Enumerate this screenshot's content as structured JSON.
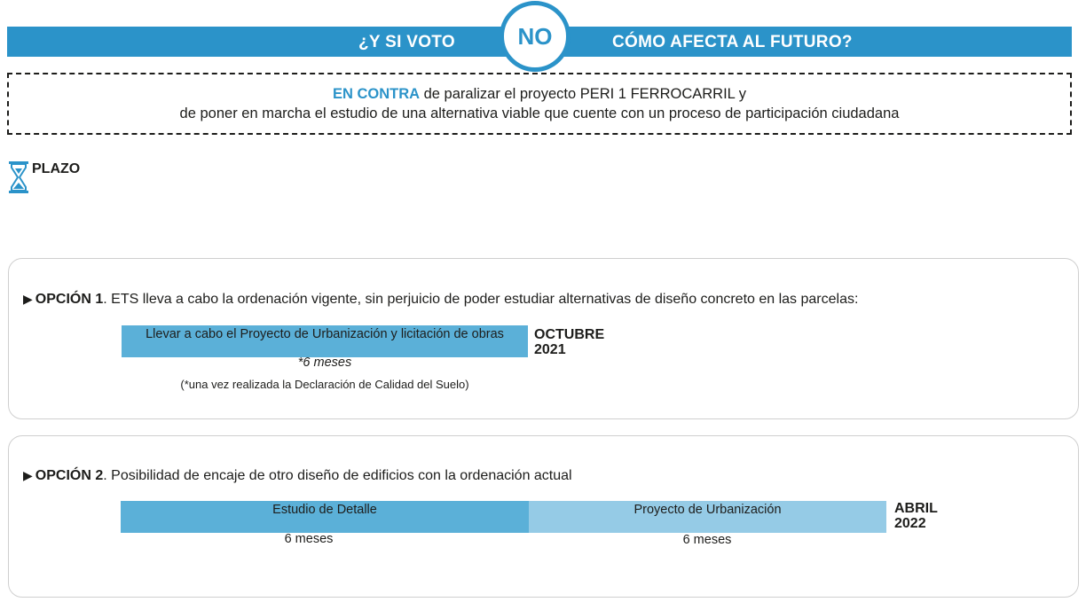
{
  "header": {
    "left_text": "¿Y SI VOTO",
    "circle_text": "NO",
    "right_text": "CÓMO AFECTA AL FUTURO?",
    "accent_color": "#2b93c9"
  },
  "statement": {
    "highlight": "EN CONTRA",
    "line1_rest": " de paralizar el proyecto PERI 1 FERROCARRIL y",
    "line2": "de poner en marcha el estudio de una alternativa viable que cuente con un proceso de participación ciudadana"
  },
  "plazo": {
    "icon": "hourglass-icon",
    "label": "PLAZO"
  },
  "option1": {
    "arrow": "▶",
    "label": "OPCIÓN 1",
    "text": ". ETS lleva a cabo la ordenación vigente, sin perjuicio de poder estudiar alternativas de diseño concreto en las parcelas:",
    "bar_label": "Llevar a cabo el Proyecto de Urbanización y licitación de obras",
    "duration": "*6 meses",
    "note": "(*una vez realizada la Declaración de Calidad del Suelo)",
    "date_line1": "OCTUBRE",
    "date_line2": "2021"
  },
  "option2": {
    "arrow": "▶",
    "label": "OPCIÓN 2",
    "text": ". Posibilidad de encaje de otro diseño de edificios con la ordenación actual",
    "bar1_label": "Estudio de Detalle",
    "bar1_duration": "6 meses",
    "bar2_label": "Proyecto de Urbanización",
    "bar2_duration": "6 meses",
    "date_line1": "ABRIL",
    "date_line2": "2022"
  }
}
